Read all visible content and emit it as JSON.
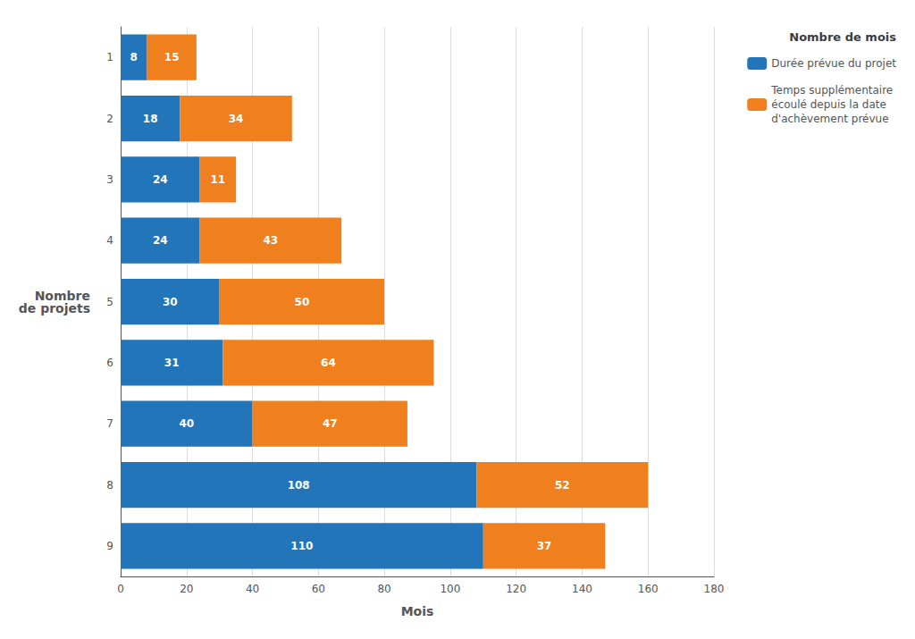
{
  "chart_data": {
    "type": "bar",
    "orientation": "horizontal",
    "stacked": true,
    "data_labels": true,
    "grid": true,
    "legend": "upper right",
    "legend_title": "Nombre de mois",
    "xlabel": "Mois",
    "ylabel": "Nombre\nde projets",
    "categories": [
      "1",
      "2",
      "3",
      "4",
      "5",
      "6",
      "7",
      "8",
      "9"
    ],
    "series": [
      {
        "name": "Durée prévue du projet",
        "color": "#2175b8",
        "values": [
          8,
          18,
          24,
          24,
          30,
          31,
          40,
          108,
          110
        ]
      },
      {
        "name": "Temps supplémentaire\nécoulé depuis la date\nd'achèvement prévue",
        "color": "#f07f1e",
        "values": [
          15,
          34,
          11,
          43,
          50,
          64,
          47,
          52,
          37
        ]
      }
    ],
    "xlim": [
      0,
      180
    ],
    "xticks": [
      0,
      20,
      40,
      60,
      80,
      100,
      120,
      140,
      160,
      180
    ]
  }
}
